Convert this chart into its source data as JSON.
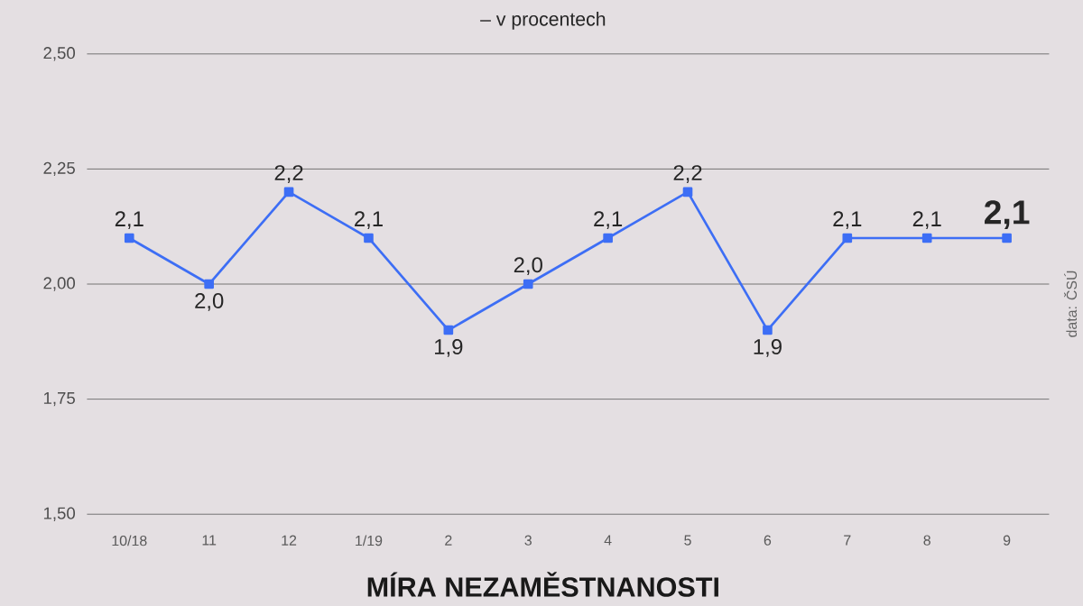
{
  "chart_data": {
    "type": "line",
    "title": "MÍRA NEZAMĚSTNANOSTI",
    "subtitle": "– v procentech",
    "categories": [
      "10/18",
      "11",
      "12",
      "1/19",
      "2",
      "3",
      "4",
      "5",
      "6",
      "7",
      "8",
      "9"
    ],
    "values": [
      2.1,
      2.0,
      2.2,
      2.1,
      1.9,
      2.0,
      2.1,
      2.2,
      1.9,
      2.1,
      2.1,
      2.1
    ],
    "value_labels": [
      "2,1",
      "2,0",
      "2,2",
      "2,1",
      "1,9",
      "2,0",
      "2,1",
      "2,2",
      "1,9",
      "2,1",
      "2,1",
      "2,1"
    ],
    "color": "#3d6ef5",
    "marker": "square",
    "grid": "y",
    "ylim": [
      1.5,
      2.5
    ],
    "yticks": [
      {
        "value": 1.5,
        "label": "1,50"
      },
      {
        "value": 1.75,
        "label": "1,75"
      },
      {
        "value": 2.0,
        "label": "2,00"
      },
      {
        "value": 2.25,
        "label": "2,25"
      },
      {
        "value": 2.5,
        "label": "2,50"
      }
    ],
    "annotations": [
      "data: ČSÚ"
    ]
  }
}
